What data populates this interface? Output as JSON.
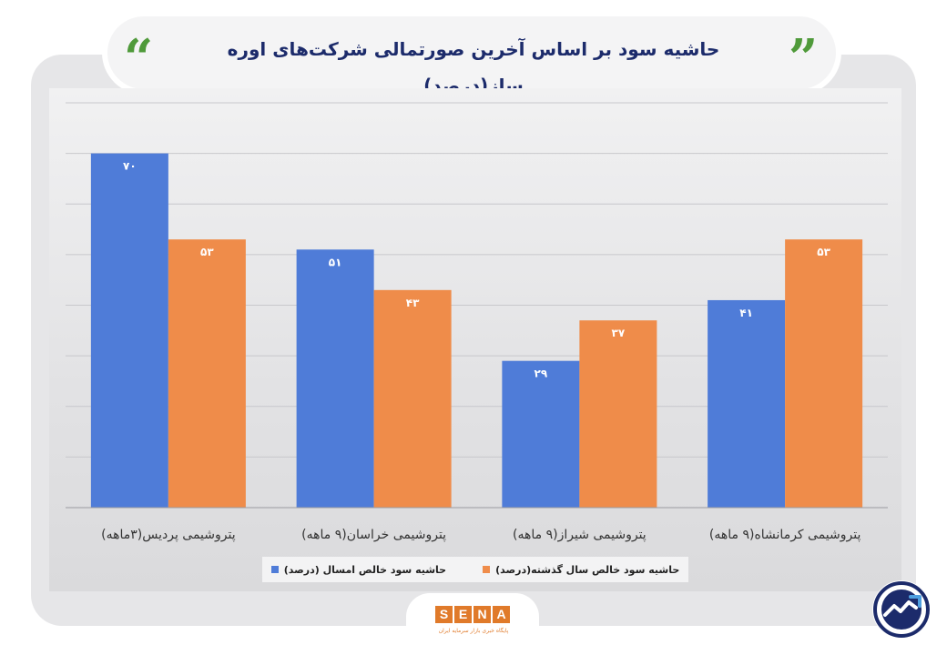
{
  "header": {
    "title": "حاشیه سود بر اساس آخرین صورتمالی شرکت‌های اوره ساز(درصد)",
    "quote_open": "“",
    "quote_close": "”"
  },
  "colors": {
    "series_current": "#4f7cd8",
    "series_previous": "#ef8c4a",
    "title": "#1c2b6b",
    "quote": "#4f9a3a",
    "gridline": "#c8c8cc"
  },
  "chart_data": {
    "type": "bar",
    "categories": [
      "پتروشیمی پردیس(۳ماهه)",
      "پتروشیمی خراسان(۹ ماهه)",
      "پتروشیمی شیراز(۹ ماهه)",
      "پتروشیمی کرمانشاه(۹ ماهه)"
    ],
    "series": [
      {
        "name": "حاشیه سود خالص امسال (درصد)",
        "values": [
          70,
          51,
          29,
          41
        ],
        "labels": [
          "۷۰",
          "۵۱",
          "۲۹",
          "۴۱"
        ]
      },
      {
        "name": "حاشیه سود خالص سال گذشته(درصد)",
        "values": [
          53,
          43,
          37,
          53
        ],
        "labels": [
          "۵۳",
          "۴۳",
          "۳۷",
          "۵۳"
        ]
      }
    ],
    "ylim": [
      0,
      80
    ],
    "grid": true,
    "legend_position": "bottom"
  },
  "logo": {
    "letters": [
      "S",
      "E",
      "N",
      "A"
    ],
    "colors": [
      "#e07a2a",
      "#e07a2a",
      "#e07a2a",
      "#e07a2a"
    ],
    "subtitle": "پایگاه خبری بازار سرمایه ایران"
  }
}
